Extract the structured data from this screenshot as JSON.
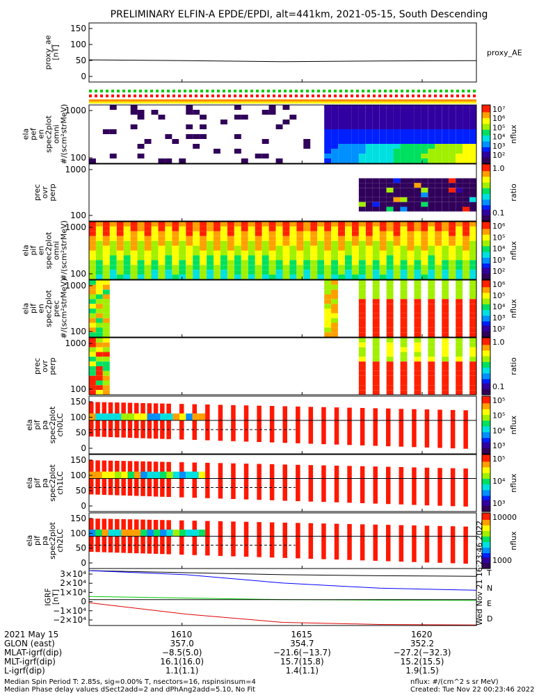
{
  "title": "PRELIMINARY ELFIN-A EPDE/EPDI, alt=441km, 2021-05-15, South Descending",
  "colors": {
    "frame": "#000000",
    "flag_green": "#00cc00",
    "flag_red": "#ff0000",
    "flag_orange": "#ff8c00",
    "flag_yellow": "#ffee00",
    "T": "#000000",
    "N": "#0000ff",
    "E": "#00cc00",
    "D": "#dd0000"
  },
  "panels": [
    {
      "id": "proxy-ae",
      "label": [
        "proxy_ae",
        "[nT]"
      ],
      "yticks": [
        "150",
        "100",
        "50",
        "0"
      ],
      "right": [
        "proxy_AE"
      ],
      "kind": "line"
    },
    {
      "id": "flags",
      "label": [],
      "yticks": [],
      "right": [],
      "kind": "flags"
    },
    {
      "id": "pef-omni",
      "label": [
        "ela",
        "pef",
        "en",
        "spec2plot",
        "omni",
        "#/(scm²strMeV)"
      ],
      "yticks": [
        "1000",
        "100"
      ],
      "colorbar": [
        "10⁷",
        "10⁶",
        "10⁵",
        "10⁴",
        "10³",
        "10²"
      ],
      "cbar_label": "nflux",
      "kind": "spec"
    },
    {
      "id": "pe-ratio",
      "label": [
        "prec",
        "ovr",
        "perp"
      ],
      "yticks": [
        "1000",
        "100"
      ],
      "colorbar": [
        "1.0",
        "0.1"
      ],
      "cbar_label": "ratio",
      "kind": "ratio"
    },
    {
      "id": "pif-omni",
      "label": [
        "ela",
        "pif",
        "en",
        "spec2plot",
        "omni",
        "#/(scm²strMeV)"
      ],
      "yticks": [
        "1000",
        "100"
      ],
      "colorbar": [
        "10⁶",
        "10⁵",
        "10⁴",
        "10³",
        "10²"
      ],
      "cbar_label": "nflux",
      "kind": "spec"
    },
    {
      "id": "pif-prec",
      "label": [
        "ela",
        "pif",
        "en",
        "spec2plot",
        "prec",
        "#/(scm²strMeV)"
      ],
      "yticks": [
        "1000",
        "100"
      ],
      "colorbar": [
        "10⁶",
        "10⁵",
        "10⁴",
        "10³",
        "10²"
      ],
      "cbar_label": "nflux",
      "kind": "spec"
    },
    {
      "id": "pi-ratio",
      "label": [
        "prec",
        "ovr",
        "perp"
      ],
      "yticks": [
        "1000",
        "100"
      ],
      "colorbar": [
        "1.0",
        "0.1"
      ],
      "cbar_label": "ratio",
      "kind": "ratio"
    },
    {
      "id": "pa-ch0",
      "label": [
        "ela",
        "pif",
        "pa",
        "spec2plot",
        "ch0LC"
      ],
      "yticks": [
        "150",
        "100",
        "50",
        "0"
      ],
      "colorbar": [
        "10⁵",
        "10⁵",
        "10⁴",
        "10³"
      ],
      "cbar_label": "nflux",
      "kind": "pa"
    },
    {
      "id": "pa-ch1",
      "label": [
        "ela",
        "pif",
        "pa",
        "spec2plot",
        "ch1LC"
      ],
      "yticks": [
        "150",
        "100",
        "50",
        "0"
      ],
      "colorbar": [
        "10⁵",
        "10⁴",
        "10³"
      ],
      "cbar_label": "nflux",
      "kind": "pa"
    },
    {
      "id": "pa-ch2",
      "label": [
        "ela",
        "pif",
        "pa",
        "spec2plot",
        "ch2LC"
      ],
      "yticks": [
        "150",
        "100",
        "50",
        "0"
      ],
      "colorbar": [
        "10000",
        "1000"
      ],
      "cbar_label": "nflux",
      "kind": "pa"
    },
    {
      "id": "igrf",
      "label": [
        "IGRF",
        "[nT]"
      ],
      "yticks": [
        "3×10⁴",
        "2×10⁴",
        "1×10⁴",
        "0",
        "−1×10⁴",
        "−2×10⁴"
      ],
      "right": [
        "T",
        "N",
        "E",
        "D"
      ],
      "kind": "igrf"
    }
  ],
  "xaxis": {
    "ticks": [
      "1610",
      "1615",
      "1620"
    ],
    "rows": [
      {
        "label": "2021 May 15",
        "values": [
          "",
          "",
          ""
        ]
      },
      {
        "label": "GLON (east)",
        "values": [
          "357.0",
          "354.7",
          "352.2"
        ]
      },
      {
        "label": "MLAT-igrf(dip)",
        "values": [
          "−8.5(5.0)",
          "−21.6(−13.7)",
          "−27.2(−32.3)"
        ]
      },
      {
        "label": "MLT-igrf(dip)",
        "values": [
          "16.1(16.0)",
          "15.7(15.8)",
          "15.2(15.5)"
        ]
      },
      {
        "label": "L-igrf(dip)",
        "values": [
          "1.1(1.1)",
          "1.4(1.1)",
          "1.9(1.5)"
        ]
      }
    ]
  },
  "footer": {
    "left1": "Median Spin Period T: 2.85s, sig=0.00% T, nsectors=16, nspinsinsum=4",
    "left2": "Median Phase delay values dSect2add=2 and dPhAng2add=5.10, No Fit",
    "right1": "nflux: #/(cm^2 s sr MeV)",
    "right2": "Created: Tue Nov 22 00:23:46 2022",
    "vertical": "Wed Nov 21 16:23:46 2022"
  },
  "chart_data": [
    {
      "type": "line",
      "title": "PRELIMINARY ELFIN-A EPDE/EPDI, alt=441km, 2021-05-15, South Descending",
      "ylabel": "proxy_ae [nT]",
      "ylim": [
        0,
        160
      ],
      "series": [
        {
          "name": "proxy_AE",
          "x": [
            "1606",
            "1610",
            "1615",
            "1620",
            "1622"
          ],
          "values": [
            60,
            58,
            55,
            57,
            58
          ]
        }
      ]
    },
    {
      "type": "line",
      "ylabel": "IGRF [nT]",
      "ylim": [
        -25000,
        30000
      ],
      "series": [
        {
          "name": "T",
          "x": [
            "1606",
            "1610",
            "1615",
            "1620",
            "1622"
          ],
          "values": [
            28000,
            26000,
            24000,
            23000,
            22500
          ]
        },
        {
          "name": "N",
          "x": [
            "1606",
            "1610",
            "1615",
            "1620",
            "1622"
          ],
          "values": [
            28000,
            24000,
            16000,
            11000,
            9000
          ]
        },
        {
          "name": "E",
          "x": [
            "1606",
            "1610",
            "1615",
            "1620",
            "1622"
          ],
          "values": [
            3000,
            1500,
            0,
            -500,
            -800
          ]
        },
        {
          "name": "D",
          "x": [
            "1606",
            "1610",
            "1615",
            "1620",
            "1622"
          ],
          "values": [
            -3000,
            -14000,
            -22000,
            -24000,
            -24500
          ]
        }
      ]
    }
  ]
}
